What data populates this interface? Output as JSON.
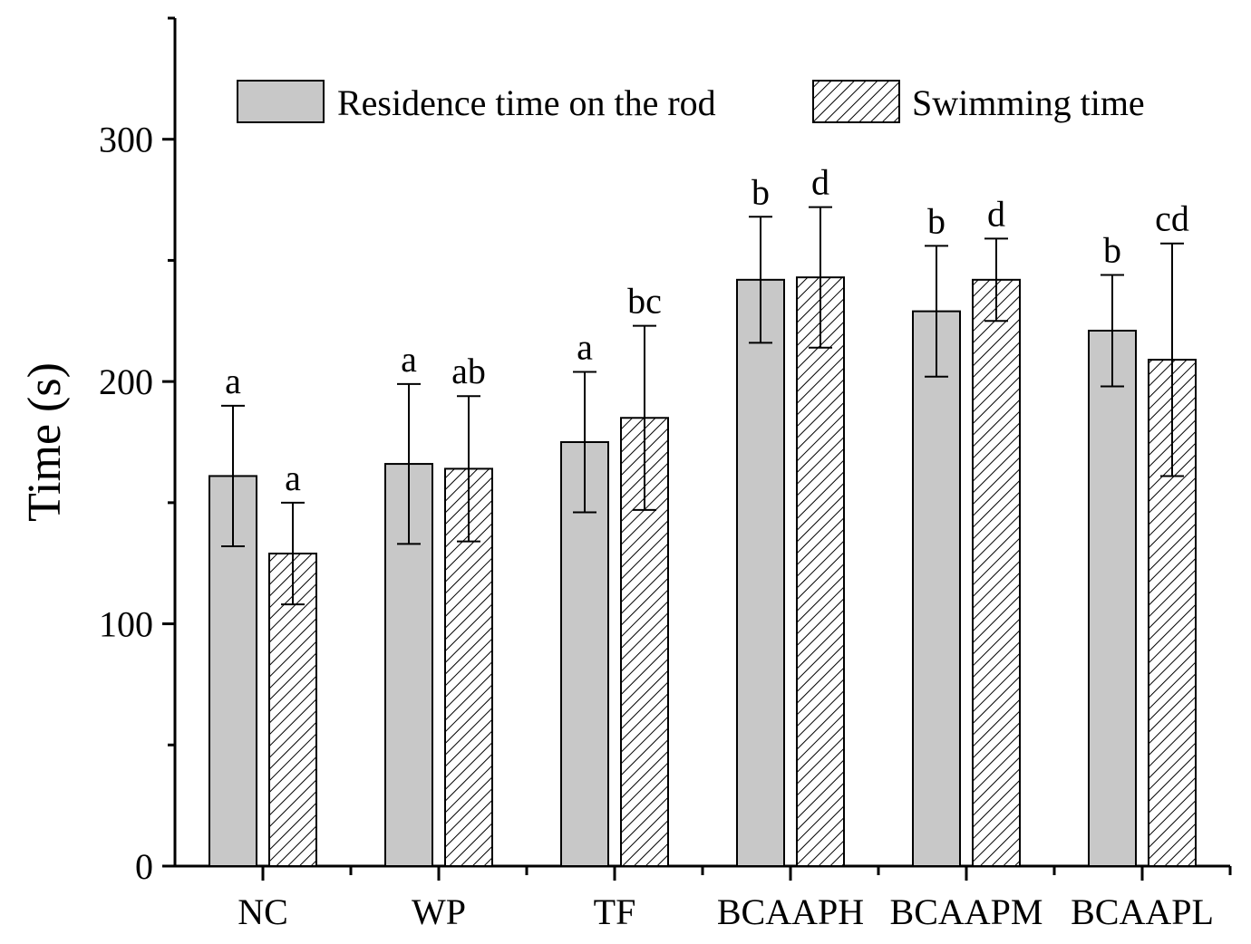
{
  "chart_data": {
    "type": "bar",
    "title": "",
    "xlabel": "",
    "ylabel": "Time (s)",
    "ylim": [
      0,
      350
    ],
    "yticks": [
      0,
      100,
      200,
      300
    ],
    "categories": [
      "NC",
      "WP",
      "TF",
      "BCAAPH",
      "BCAAPM",
      "BCAAPL"
    ],
    "legend_position": "top",
    "series": [
      {
        "name": "Residence time on the rod",
        "fill": "#c8c8c8",
        "pattern": "solid",
        "values": [
          161,
          166,
          175,
          242,
          229,
          221
        ],
        "errors": [
          29,
          33,
          29,
          26,
          27,
          23
        ],
        "labels": [
          "a",
          "a",
          "a",
          "b",
          "b",
          "b"
        ]
      },
      {
        "name": "Swimming time",
        "fill": "#ffffff",
        "pattern": "hatched",
        "values": [
          129,
          164,
          185,
          243,
          242,
          209
        ],
        "errors": [
          21,
          30,
          38,
          29,
          17,
          48
        ],
        "labels": [
          "a",
          "ab",
          "bc",
          "d",
          "d",
          "cd"
        ]
      }
    ]
  }
}
